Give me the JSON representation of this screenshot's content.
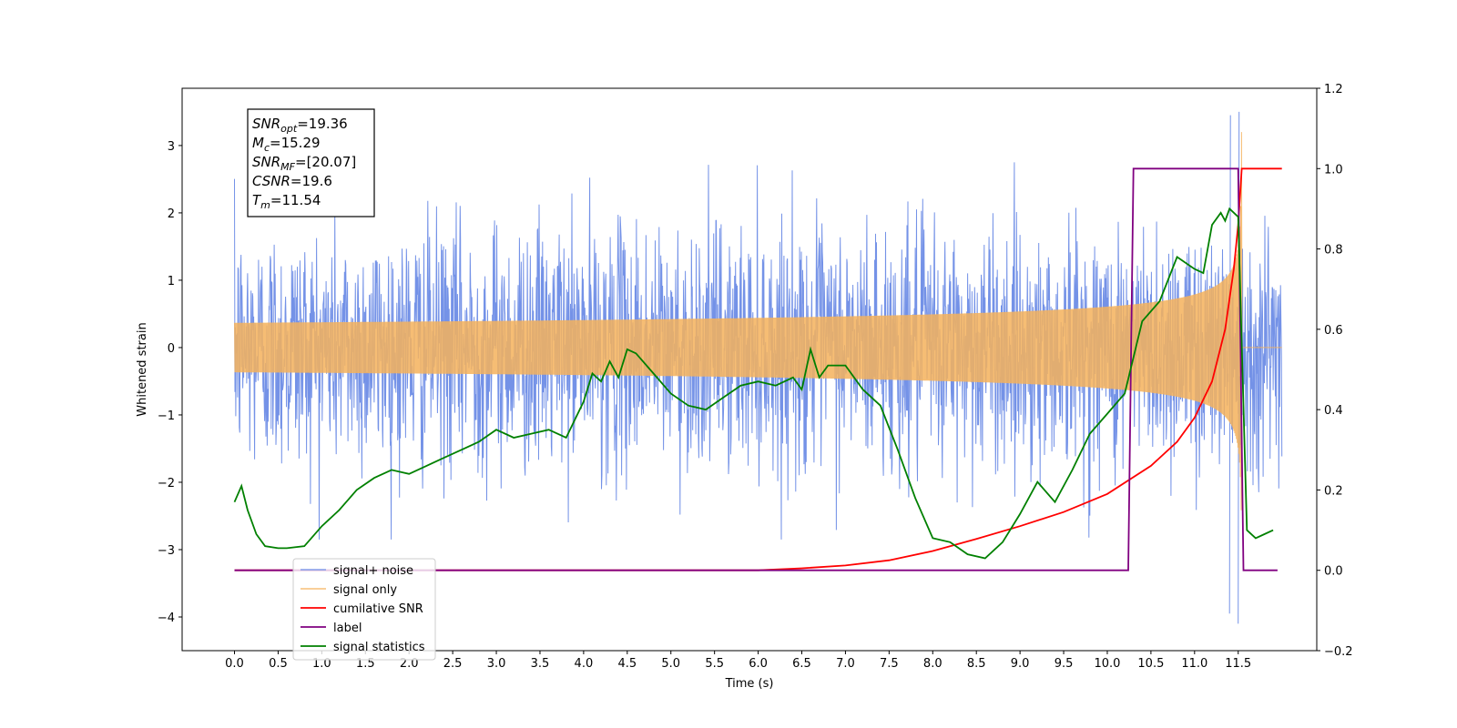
{
  "chart_data": {
    "type": "line",
    "xlabel": "Time (s)",
    "ylabel_left": "Whitened strain",
    "ylabel_right": "",
    "xlim": [
      -0.6,
      12.4
    ],
    "ylim_left": [
      -4.5,
      3.85
    ],
    "ylim_right": [
      -0.2,
      1.2
    ],
    "x_ticks": [
      "0.0",
      "0.5",
      "1.0",
      "1.5",
      "2.0",
      "2.5",
      "3.0",
      "3.5",
      "4.0",
      "4.5",
      "5.0",
      "5.5",
      "6.0",
      "6.5",
      "7.0",
      "7.5",
      "8.0",
      "8.5",
      "9.0",
      "9.5",
      "10.0",
      "10.5",
      "11.0",
      "11.5"
    ],
    "y_ticks_left": [
      "−4",
      "−3",
      "−2",
      "−1",
      "0",
      "1",
      "2",
      "3"
    ],
    "y_ticks_right": [
      "−0.2",
      "0.0",
      "0.2",
      "0.4",
      "0.6",
      "0.8",
      "1.0",
      "1.2"
    ],
    "grid": false,
    "legend_position": "lower-left",
    "annotation": {
      "lines": [
        {
          "sym": "SNR",
          "sub": "opt",
          "val": "=19.36"
        },
        {
          "sym": "M",
          "sub": "c",
          "val": "=15.29"
        },
        {
          "sym": "SNR",
          "sub": "MF",
          "val": "=[20.07]"
        },
        {
          "sym": "CSNR",
          "sub": "",
          "val": "=19.6"
        },
        {
          "sym": "T",
          "sub": "m",
          "val": "=11.54"
        }
      ]
    },
    "series": [
      {
        "name": "signal+ noise",
        "color": "#6d8ce6",
        "axis": "left",
        "kind": "noise",
        "noise_std": 0.95,
        "x_range": [
          0.0,
          12.0
        ],
        "spike_x": [
          11.4,
          11.5
        ],
        "spike_min": [
          -3.95,
          -4.1
        ],
        "spike_max": [
          3.45,
          3.5
        ]
      },
      {
        "name": "signal only",
        "color": "#f5b25c",
        "axis": "left",
        "kind": "chirp",
        "merger_time": 11.54,
        "peak_amplitude": 3.2,
        "x_range": [
          0.0,
          12.0
        ]
      },
      {
        "name": "cumilative SNR",
        "color": "#ff0000",
        "axis": "right",
        "kind": "line",
        "x": [
          0.0,
          5.0,
          6.0,
          6.5,
          7.0,
          7.5,
          8.0,
          8.5,
          9.0,
          9.5,
          10.0,
          10.5,
          10.8,
          11.0,
          11.2,
          11.35,
          11.45,
          11.5,
          11.54,
          11.55,
          12.0
        ],
        "y": [
          0.0,
          0.0,
          0.0,
          0.005,
          0.012,
          0.025,
          0.048,
          0.078,
          0.11,
          0.145,
          0.19,
          0.26,
          0.32,
          0.38,
          0.47,
          0.6,
          0.75,
          0.86,
          1.0,
          1.0,
          1.0
        ]
      },
      {
        "name": "label",
        "color": "#800080",
        "axis": "right",
        "kind": "line",
        "x": [
          0.0,
          10.24,
          10.3,
          11.5,
          11.56,
          11.95
        ],
        "y": [
          0.0,
          0.0,
          1.0,
          1.0,
          0.0,
          0.0
        ]
      },
      {
        "name": "signal statistics",
        "color": "#008000",
        "axis": "right",
        "kind": "line",
        "x": [
          0.0,
          0.08,
          0.15,
          0.25,
          0.35,
          0.5,
          0.6,
          0.8,
          1.0,
          1.2,
          1.4,
          1.6,
          1.8,
          2.0,
          2.2,
          2.4,
          2.6,
          2.8,
          3.0,
          3.2,
          3.4,
          3.6,
          3.8,
          4.0,
          4.1,
          4.2,
          4.3,
          4.4,
          4.5,
          4.6,
          4.8,
          5.0,
          5.2,
          5.4,
          5.6,
          5.8,
          6.0,
          6.2,
          6.4,
          6.5,
          6.6,
          6.7,
          6.8,
          7.0,
          7.2,
          7.4,
          7.6,
          7.8,
          8.0,
          8.2,
          8.4,
          8.6,
          8.8,
          9.0,
          9.2,
          9.4,
          9.6,
          9.8,
          10.0,
          10.2,
          10.4,
          10.6,
          10.8,
          11.0,
          11.1,
          11.2,
          11.3,
          11.35,
          11.4,
          11.5,
          11.6,
          11.7,
          11.8,
          11.9
        ],
        "y": [
          0.17,
          0.21,
          0.15,
          0.09,
          0.06,
          0.055,
          0.055,
          0.06,
          0.11,
          0.15,
          0.2,
          0.23,
          0.25,
          0.24,
          0.26,
          0.28,
          0.3,
          0.32,
          0.35,
          0.33,
          0.34,
          0.35,
          0.33,
          0.42,
          0.49,
          0.47,
          0.52,
          0.48,
          0.55,
          0.54,
          0.49,
          0.44,
          0.41,
          0.4,
          0.43,
          0.46,
          0.47,
          0.46,
          0.48,
          0.45,
          0.55,
          0.48,
          0.51,
          0.51,
          0.45,
          0.41,
          0.3,
          0.18,
          0.08,
          0.07,
          0.04,
          0.03,
          0.07,
          0.14,
          0.22,
          0.17,
          0.25,
          0.34,
          0.39,
          0.44,
          0.62,
          0.67,
          0.78,
          0.75,
          0.74,
          0.86,
          0.89,
          0.87,
          0.9,
          0.88,
          0.1,
          0.08,
          0.09,
          0.1
        ]
      }
    ]
  }
}
